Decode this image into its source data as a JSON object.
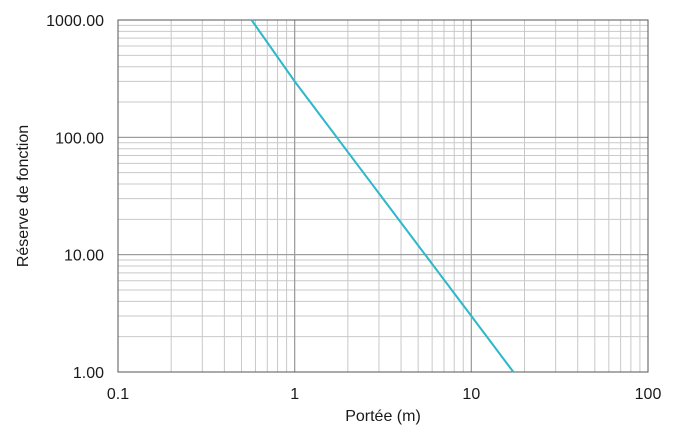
{
  "chart_data": {
    "type": "line",
    "title": "",
    "xlabel": "Portée (m)",
    "ylabel": "Réserve de fonction",
    "xscale": "log",
    "yscale": "log",
    "xlim": [
      0.1,
      100
    ],
    "ylim": [
      1,
      1000
    ],
    "grid": true,
    "x_ticks": [
      {
        "value": 0.1,
        "label": "0.1"
      },
      {
        "value": 1,
        "label": "1"
      },
      {
        "value": 10,
        "label": "10"
      },
      {
        "value": 100,
        "label": "100"
      }
    ],
    "y_ticks": [
      {
        "value": 1,
        "label": "1.00"
      },
      {
        "value": 10,
        "label": "10.00"
      },
      {
        "value": 100,
        "label": "100.00"
      },
      {
        "value": 1000,
        "label": "1000.00"
      }
    ],
    "series": [
      {
        "color": "#2bb8c8",
        "x": [
          0.57,
          1,
          10,
          17.3
        ],
        "y": [
          1000,
          300,
          3,
          1
        ]
      }
    ]
  }
}
